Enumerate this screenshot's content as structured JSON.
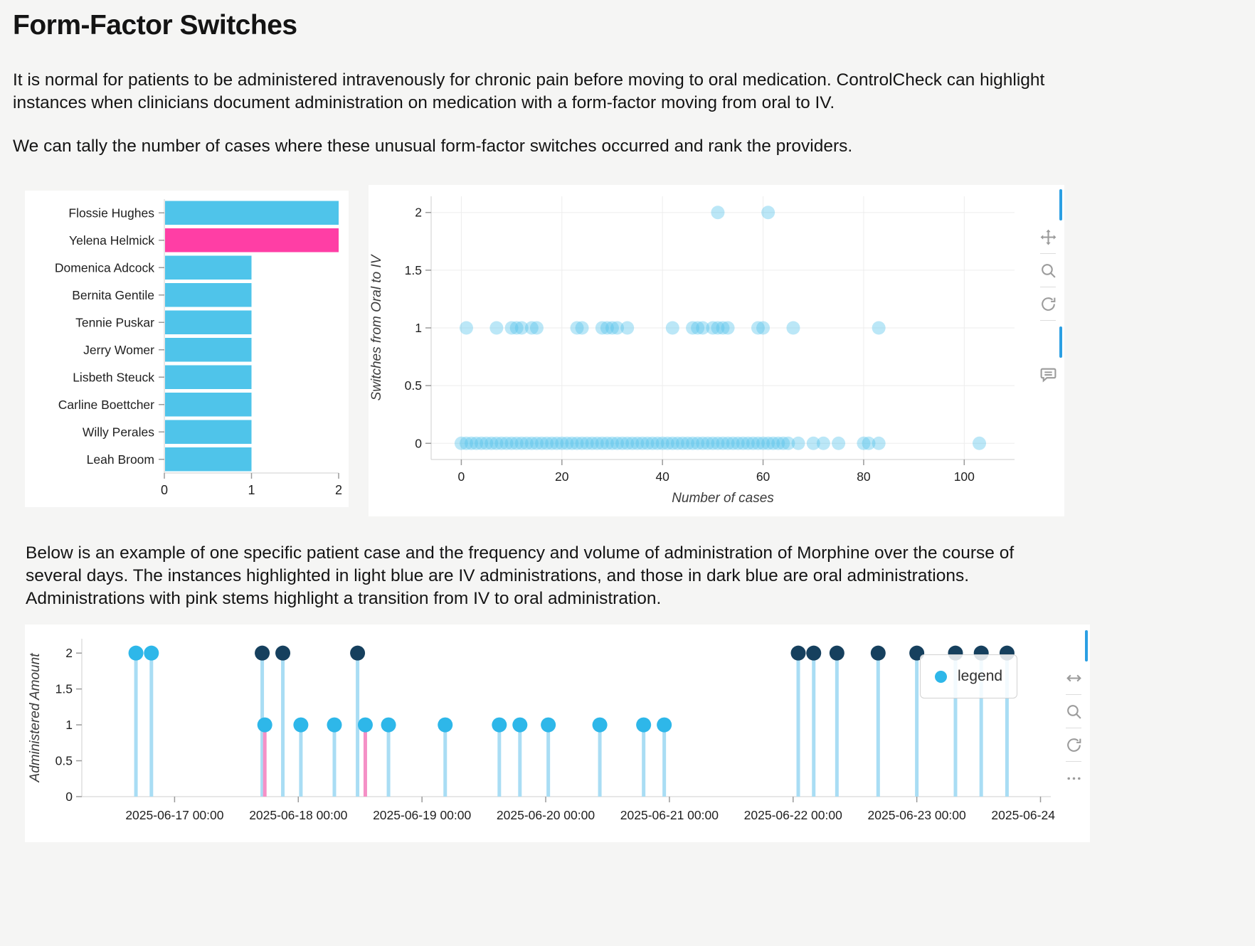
{
  "page": {
    "title": "Form-Factor Switches",
    "paragraph1": "It is normal for patients to be administered intravenously for chronic pain before moving to oral medication. ControlCheck can highlight instances when clinicians document administration on medication with a form-factor moving from oral to IV.",
    "paragraph2": "We can tally the number of cases where these unusual form-factor switches occurred and rank the providers.",
    "paragraph3": "Below is an example of one specific patient case and the frequency and volume of administration of Morphine over the course of several days. The instances highlighted in light blue are IV administrations, and those in dark blue are oral administrations. Administrations with pink stems highlight a transition from IV to oral administration."
  },
  "colors": {
    "light_blue_bar": "#4fc4ea",
    "pink_bar": "#ff3ea5",
    "scatter_marker": "#56c2ea",
    "stem_blue": "#a9ddf4",
    "stem_pink": "#f590c6",
    "iv_marker": "#2eb7e9",
    "oral_marker": "#16405e",
    "toolbar_active": "#2b9fe3",
    "toolbar_icon": "#9b9b9b"
  },
  "toolbars": {
    "scatter_tools": [
      "pan",
      "zoom",
      "reset",
      "hover"
    ],
    "stem_tools": [
      "pan-horizontal",
      "zoom",
      "reset",
      "more"
    ]
  },
  "chart_data": [
    {
      "type": "bar",
      "orientation": "horizontal",
      "categories": [
        "Flossie Hughes",
        "Yelena Helmick",
        "Domenica Adcock",
        "Bernita Gentile",
        "Tennie Puskar",
        "Jerry Womer",
        "Lisbeth Steuck",
        "Carline Boettcher",
        "Willy Perales",
        "Leah Broom"
      ],
      "values": [
        2,
        2,
        1,
        1,
        1,
        1,
        1,
        1,
        1,
        1
      ],
      "bar_colors": [
        "#4fc4ea",
        "#ff3ea5",
        "#4fc4ea",
        "#4fc4ea",
        "#4fc4ea",
        "#4fc4ea",
        "#4fc4ea",
        "#4fc4ea",
        "#4fc4ea",
        "#4fc4ea"
      ],
      "xticks": [
        0,
        1,
        2
      ],
      "xlim": [
        0,
        2
      ],
      "title": "",
      "xlabel": "",
      "ylabel": ""
    },
    {
      "type": "scatter",
      "title": "",
      "xlabel": "Number of cases",
      "ylabel": "Switches from Oral to IV",
      "xticks": [
        0,
        20,
        40,
        60,
        80,
        100
      ],
      "yticks": [
        0,
        0.5,
        1,
        1.5,
        2
      ],
      "xlim": [
        -6,
        110
      ],
      "ylim": [
        -0.14,
        2.14
      ],
      "grid": true,
      "marker_opacity": 0.4,
      "series": [
        {
          "y": 2,
          "x": [
            51,
            61
          ]
        },
        {
          "y": 1,
          "x": [
            1,
            7,
            10,
            11,
            12,
            14,
            15,
            23,
            24,
            28,
            29,
            30,
            31,
            33,
            42,
            46,
            47,
            48,
            50,
            51,
            52,
            53,
            59,
            60,
            66,
            83
          ]
        },
        {
          "y": 0,
          "x": [
            0,
            1,
            2,
            3,
            4,
            5,
            6,
            7,
            8,
            9,
            10,
            11,
            12,
            13,
            14,
            15,
            16,
            17,
            18,
            19,
            20,
            21,
            22,
            23,
            24,
            25,
            26,
            27,
            28,
            29,
            30,
            31,
            32,
            33,
            34,
            35,
            36,
            37,
            38,
            39,
            40,
            41,
            42,
            43,
            44,
            45,
            46,
            47,
            48,
            49,
            50,
            51,
            52,
            53,
            54,
            55,
            56,
            57,
            58,
            59,
            60,
            61,
            62,
            63,
            64,
            65,
            67,
            70,
            72,
            75,
            80,
            81,
            83,
            103
          ]
        }
      ]
    },
    {
      "type": "stem",
      "title": "",
      "xlabel": "",
      "ylabel": "Administered Amount",
      "yticks": [
        0,
        0.5,
        1,
        1.5,
        2
      ],
      "ylim": [
        0,
        2.2
      ],
      "x_start": "2025-06-16 06:00",
      "x_end": "2025-06-24 02:00",
      "xticks": [
        "2025-06-17 00:00",
        "2025-06-18 00:00",
        "2025-06-19 00:00",
        "2025-06-20 00:00",
        "2025-06-21 00:00",
        "2025-06-22 00:00",
        "2025-06-23 00:00",
        "2025-06-24 00:00"
      ],
      "legend_label": "legend",
      "points": [
        {
          "time": "2025-06-16 16:30",
          "amount": 2,
          "route": "iv",
          "transition": false
        },
        {
          "time": "2025-06-16 19:30",
          "amount": 2,
          "route": "iv",
          "transition": false
        },
        {
          "time": "2025-06-17 17:00",
          "amount": 2,
          "route": "oral",
          "transition": false
        },
        {
          "time": "2025-06-17 17:30",
          "amount": 1,
          "route": "iv",
          "transition": true
        },
        {
          "time": "2025-06-17 21:00",
          "amount": 2,
          "route": "oral",
          "transition": false
        },
        {
          "time": "2025-06-18 00:30",
          "amount": 1,
          "route": "iv",
          "transition": false
        },
        {
          "time": "2025-06-18 07:00",
          "amount": 1,
          "route": "iv",
          "transition": false
        },
        {
          "time": "2025-06-18 11:30",
          "amount": 2,
          "route": "oral",
          "transition": false
        },
        {
          "time": "2025-06-18 13:00",
          "amount": 1,
          "route": "iv",
          "transition": true
        },
        {
          "time": "2025-06-18 17:30",
          "amount": 1,
          "route": "iv",
          "transition": false
        },
        {
          "time": "2025-06-19 04:30",
          "amount": 1,
          "route": "iv",
          "transition": false
        },
        {
          "time": "2025-06-19 15:00",
          "amount": 1,
          "route": "iv",
          "transition": false
        },
        {
          "time": "2025-06-19 19:00",
          "amount": 1,
          "route": "iv",
          "transition": false
        },
        {
          "time": "2025-06-20 00:30",
          "amount": 1,
          "route": "iv",
          "transition": false
        },
        {
          "time": "2025-06-20 10:30",
          "amount": 1,
          "route": "iv",
          "transition": false
        },
        {
          "time": "2025-06-20 19:00",
          "amount": 1,
          "route": "iv",
          "transition": false
        },
        {
          "time": "2025-06-20 23:00",
          "amount": 1,
          "route": "iv",
          "transition": false
        },
        {
          "time": "2025-06-22 01:00",
          "amount": 2,
          "route": "oral",
          "transition": false
        },
        {
          "time": "2025-06-22 04:00",
          "amount": 2,
          "route": "oral",
          "transition": false
        },
        {
          "time": "2025-06-22 08:30",
          "amount": 2,
          "route": "oral",
          "transition": false
        },
        {
          "time": "2025-06-22 16:30",
          "amount": 2,
          "route": "oral",
          "transition": false
        },
        {
          "time": "2025-06-23 00:00",
          "amount": 2,
          "route": "oral",
          "transition": false
        },
        {
          "time": "2025-06-23 07:30",
          "amount": 2,
          "route": "oral",
          "transition": false
        },
        {
          "time": "2025-06-23 12:30",
          "amount": 2,
          "route": "oral",
          "transition": false
        },
        {
          "time": "2025-06-23 17:30",
          "amount": 2,
          "route": "oral",
          "transition": false
        }
      ]
    }
  ]
}
